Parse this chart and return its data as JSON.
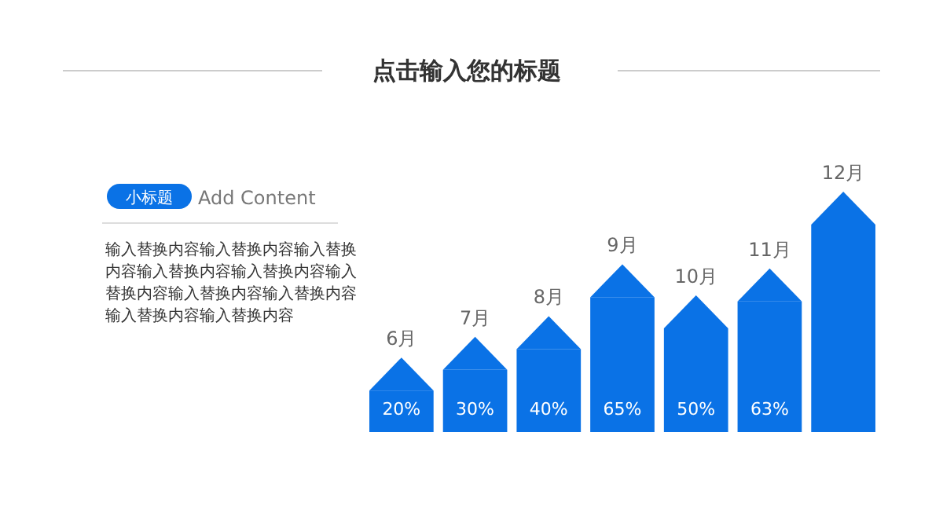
{
  "chart_data": {
    "type": "bar",
    "title": "点击输入您的标题",
    "categories": [
      "6月",
      "7月",
      "8月",
      "9月",
      "10月",
      "11月",
      "12月"
    ],
    "values": [
      20,
      30,
      40,
      65,
      50,
      63,
      100
    ],
    "value_labels": [
      "20%",
      "30%",
      "40%",
      "65%",
      "50%",
      "63%",
      null
    ],
    "color": "#0a72e6",
    "annotations": [
      "小标题",
      "Add Content",
      "输入替换内容输入替换内容输入替换内容输入替换内容输入替换内容输入替换内容输入替换内容输入替换内容输入替换内容输入替换内容"
    ]
  }
}
